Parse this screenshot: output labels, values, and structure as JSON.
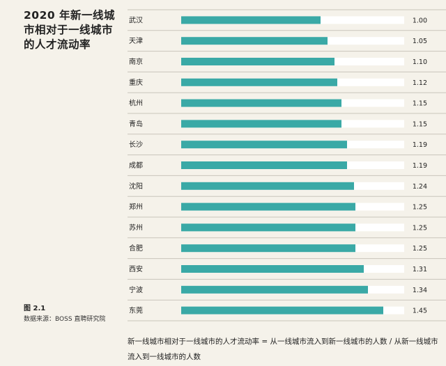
{
  "title": "2020 年新一线城市相对于一线城市的人才流动率",
  "figure_label": "图 2.1",
  "source": "数据来源：BOSS 直聘研究院",
  "footnote": "新一线城市相对于一线城市的人才流动率 = 从一线城市流入到新一线城市的人数 / 从新一线城市流入到一线城市的人数",
  "colors": {
    "bar": "#3aa9a6",
    "track": "#ffffff",
    "divider": "#c9c5bb",
    "background": "#f5f2ea"
  },
  "chart_data": {
    "type": "bar",
    "orientation": "horizontal",
    "categories": [
      "武汉",
      "天津",
      "南京",
      "重庆",
      "杭州",
      "青岛",
      "长沙",
      "成都",
      "沈阳",
      "郑州",
      "苏州",
      "合肥",
      "西安",
      "宁波",
      "东莞"
    ],
    "values": [
      1.0,
      1.05,
      1.1,
      1.12,
      1.15,
      1.15,
      1.19,
      1.19,
      1.24,
      1.25,
      1.25,
      1.25,
      1.31,
      1.34,
      1.45
    ],
    "value_labels": [
      "1.00",
      "1.05",
      "1.10",
      "1.12",
      "1.15",
      "1.15",
      "1.19",
      "1.19",
      "1.24",
      "1.25",
      "1.25",
      "1.25",
      "1.31",
      "1.34",
      "1.45"
    ],
    "xlim": [
      0,
      1.6
    ],
    "grid": false,
    "legend": "none"
  }
}
